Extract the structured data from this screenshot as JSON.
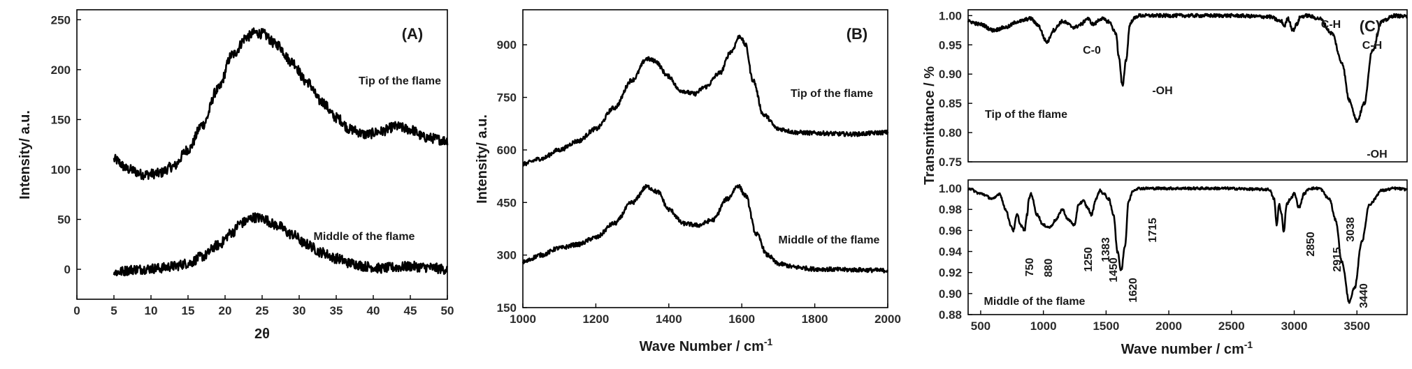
{
  "chart_data": [
    {
      "type": "line",
      "panel_label": "(A)",
      "xlabel": "2θ",
      "ylabel": "Intensity/ a.u.",
      "xlim": [
        0,
        50
      ],
      "ylim": [
        -30,
        260
      ],
      "xticks": [
        0,
        5,
        10,
        15,
        20,
        25,
        30,
        35,
        40,
        45,
        50
      ],
      "yticks": [
        0,
        50,
        100,
        150,
        200,
        250
      ],
      "grid": false,
      "noise": 5,
      "series": [
        {
          "name": "Tip of the flame",
          "x": [
            5,
            7,
            9,
            11,
            13,
            15,
            17,
            19,
            21,
            23,
            24,
            25,
            27,
            29,
            31,
            33,
            35,
            37,
            39,
            41,
            43,
            45,
            47,
            50
          ],
          "y": [
            110,
            100,
            95,
            96,
            103,
            120,
            145,
            180,
            215,
            233,
            237,
            236,
            225,
            208,
            188,
            168,
            152,
            140,
            135,
            138,
            143,
            140,
            132,
            129
          ]
        },
        {
          "name": "Middle of the flame",
          "x": [
            5,
            8,
            11,
            13,
            15,
            17,
            19,
            21,
            22,
            24,
            25,
            27,
            29,
            31,
            33,
            35,
            37,
            39,
            41,
            43,
            45,
            47,
            50
          ],
          "y": [
            -3,
            0,
            1,
            3,
            6,
            13,
            24,
            37,
            46,
            52,
            51,
            44,
            35,
            25,
            17,
            11,
            6,
            3,
            1,
            2,
            3,
            2,
            0
          ]
        }
      ],
      "annotations": [
        "Tip of the flame",
        "Middle of the flame"
      ]
    },
    {
      "type": "line",
      "panel_label": "(B)",
      "xlabel": "Wave Number / cm-1",
      "ylabel": "Intensity/ a.u.",
      "xlim": [
        1000,
        2000
      ],
      "ylim": [
        150,
        1000
      ],
      "xticks": [
        1000,
        1200,
        1400,
        1600,
        1800,
        2000
      ],
      "yticks": [
        150,
        300,
        450,
        600,
        750,
        900
      ],
      "grid": false,
      "noise": 6,
      "series": [
        {
          "name": "Tip of the flame",
          "x": [
            1000,
            1050,
            1100,
            1150,
            1200,
            1250,
            1300,
            1340,
            1360,
            1400,
            1430,
            1470,
            1500,
            1540,
            1570,
            1595,
            1610,
            1630,
            1660,
            1700,
            1750,
            1800,
            1900,
            2000
          ],
          "y": [
            560,
            575,
            600,
            625,
            660,
            720,
            800,
            860,
            855,
            810,
            770,
            760,
            780,
            820,
            880,
            925,
            900,
            800,
            700,
            660,
            650,
            648,
            645,
            650
          ]
        },
        {
          "name": "Middle of the flame",
          "x": [
            1000,
            1050,
            1100,
            1150,
            1200,
            1250,
            1300,
            1340,
            1370,
            1400,
            1440,
            1480,
            1520,
            1560,
            1590,
            1610,
            1640,
            1670,
            1700,
            1750,
            1800,
            1900,
            2000
          ],
          "y": [
            280,
            300,
            320,
            330,
            350,
            390,
            450,
            495,
            480,
            430,
            390,
            385,
            400,
            460,
            498,
            470,
            360,
            300,
            275,
            265,
            260,
            258,
            256
          ]
        }
      ],
      "annotations": [
        "Tip of the flame",
        "Middle of the flame"
      ]
    },
    {
      "type": "line",
      "panel_label": "(C)",
      "panel": "top",
      "xlabel": "",
      "ylabel": "Transmittance / %",
      "xlim": [
        400,
        3900
      ],
      "ylim": [
        0.75,
        1.01
      ],
      "xticks": [],
      "yticks": [
        0.75,
        0.8,
        0.85,
        0.9,
        0.95,
        1.0
      ],
      "grid": false,
      "noise": 0.003,
      "series": [
        {
          "name": "Tip of the flame",
          "x": [
            400,
            500,
            600,
            700,
            800,
            900,
            950,
            1030,
            1080,
            1150,
            1250,
            1300,
            1350,
            1400,
            1460,
            1520,
            1580,
            1600,
            1630,
            1660,
            1690,
            1720,
            1760,
            1900,
            2200,
            2500,
            2800,
            2900,
            2920,
            2950,
            2990,
            3020,
            3050,
            3100,
            3200,
            3300,
            3380,
            3440,
            3500,
            3560,
            3620,
            3700,
            3800,
            3900
          ],
          "y": [
            0.99,
            0.985,
            0.975,
            0.98,
            0.99,
            0.995,
            0.985,
            0.955,
            0.975,
            0.99,
            0.98,
            0.985,
            0.995,
            0.985,
            0.995,
            0.99,
            0.97,
            0.93,
            0.88,
            0.925,
            0.985,
            0.995,
            1.0,
            1.0,
            1.0,
            1.0,
            0.998,
            0.99,
            0.982,
            0.995,
            0.975,
            0.985,
            0.998,
            1.0,
            0.995,
            0.97,
            0.92,
            0.855,
            0.82,
            0.85,
            0.94,
            0.99,
            1.0,
            0.998
          ]
        }
      ],
      "annotations": [
        "C-0",
        "-OH",
        "C-H",
        "C-H",
        "-OH",
        "Tip of the flame"
      ]
    },
    {
      "type": "line",
      "panel": "bottom",
      "xlabel": "Wave number / cm-1",
      "ylabel": "",
      "xlim": [
        400,
        3900
      ],
      "ylim": [
        0.88,
        1.008
      ],
      "xticks": [
        500,
        1000,
        1500,
        2000,
        2500,
        3000,
        3500
      ],
      "yticks": [
        0.88,
        0.9,
        0.92,
        0.94,
        0.96,
        0.98,
        1.0
      ],
      "grid": false,
      "noise": 0.0012,
      "series": [
        {
          "name": "Middle of the flame",
          "x": [
            400,
            500,
            600,
            650,
            700,
            740,
            760,
            790,
            820,
            850,
            870,
            885,
            900,
            950,
            1000,
            1050,
            1100,
            1150,
            1200,
            1250,
            1280,
            1320,
            1350,
            1383,
            1420,
            1450,
            1480,
            1520,
            1560,
            1590,
            1620,
            1650,
            1680,
            1715,
            1750,
            1800,
            2000,
            2400,
            2800,
            2840,
            2860,
            2880,
            2900,
            2915,
            2940,
            2970,
            3000,
            3038,
            3080,
            3120,
            3200,
            3280,
            3330,
            3380,
            3440,
            3480,
            3540,
            3600,
            3700,
            3800,
            3900
          ],
          "y": [
            1.0,
            0.995,
            0.99,
            0.995,
            0.98,
            0.965,
            0.96,
            0.975,
            0.965,
            0.96,
            0.975,
            0.99,
            0.995,
            0.975,
            0.965,
            0.963,
            0.97,
            0.98,
            0.97,
            0.965,
            0.985,
            0.988,
            0.982,
            0.975,
            0.99,
            0.998,
            0.995,
            0.99,
            0.975,
            0.94,
            0.922,
            0.945,
            0.988,
            0.998,
            1.0,
            1.0,
            1.0,
            1.0,
            0.999,
            0.99,
            0.965,
            0.985,
            0.975,
            0.958,
            0.985,
            0.99,
            0.995,
            0.982,
            0.995,
            1.0,
            1.0,
            0.99,
            0.97,
            0.93,
            0.892,
            0.905,
            0.95,
            0.985,
            0.998,
            1.0,
            0.999
          ]
        }
      ],
      "annotations": [
        "750",
        "880",
        "1250",
        "1383",
        "1450",
        "1620",
        "1715",
        "2850",
        "2915",
        "3038",
        "3440",
        "Middle of the flame"
      ]
    }
  ]
}
